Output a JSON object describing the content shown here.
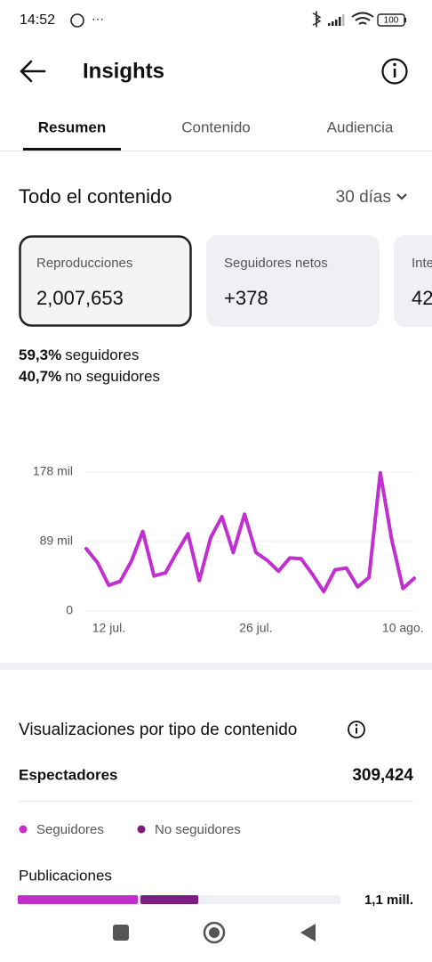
{
  "status_bar": {
    "time": "14:52",
    "battery": "100"
  },
  "header": {
    "title": "Insights"
  },
  "tabs": [
    "Resumen",
    "Contenido",
    "Audiencia"
  ],
  "section": {
    "title": "Todo el contenido",
    "period": "30 días"
  },
  "cards": [
    {
      "label": "Reproducciones",
      "value": "2,007,653"
    },
    {
      "label": "Seguidores netos",
      "value": "+378"
    },
    {
      "label": "Inte",
      "value": "42"
    }
  ],
  "audience_split": [
    {
      "percent": "59,3%",
      "label": "seguidores"
    },
    {
      "percent": "40,7%",
      "label": "no seguidores"
    }
  ],
  "breakdown": {
    "title": "Visualizaciones por tipo de contenido",
    "viewers_label": "Espectadores",
    "viewers_value": "309,424"
  },
  "chart_data": [
    {
      "type": "line",
      "categories": [
        null,
        null,
        "12 jul.",
        null,
        null,
        null,
        null,
        null,
        null,
        null,
        null,
        null,
        null,
        null,
        null,
        "26 jul.",
        null,
        null,
        null,
        null,
        null,
        null,
        null,
        null,
        null,
        null,
        null,
        null,
        "10 ago.",
        null
      ],
      "series": [
        {
          "color": "#c12fd0",
          "values": [
            80000,
            62000,
            33000,
            38000,
            64000,
            102000,
            45000,
            49000,
            75000,
            99000,
            39000,
            94000,
            121000,
            75000,
            124000,
            75000,
            65000,
            51000,
            68000,
            67000,
            47000,
            25000,
            53000,
            55000,
            31000,
            43000,
            177000,
            92000,
            29000,
            42000
          ]
        }
      ],
      "ylim": [
        0,
        178000
      ],
      "yticks": [
        0,
        {
          "value": 89000,
          "label": "89 mil"
        },
        {
          "value": 178000,
          "label": "178 mil"
        }
      ],
      "grid": true
    },
    {
      "type": "bar",
      "orientation": "horizontal",
      "stacked": true,
      "categories": [
        "Publicaciones"
      ],
      "series": [
        {
          "name": "Seguidores",
          "color": "#c32ecf",
          "values": [
            744000
          ]
        },
        {
          "name": "No seguidores",
          "color": "#7d1d80",
          "values": [
            375000
          ]
        }
      ],
      "total_labels": [
        "1,1 mill."
      ],
      "xlim": [
        0,
        2000000
      ]
    }
  ]
}
